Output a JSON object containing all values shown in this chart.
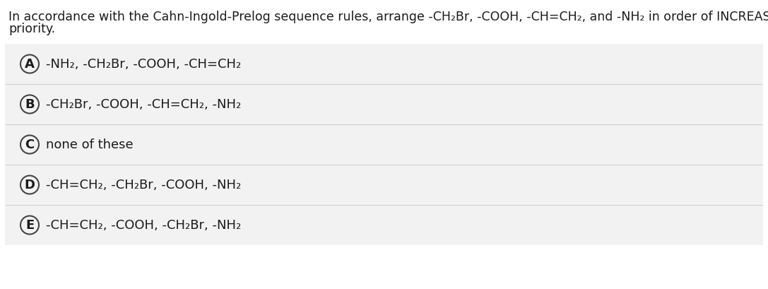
{
  "background_color": "#ffffff",
  "options_bg_color": "#f2f2f2",
  "separator_color": "#d0d0d0",
  "text_color": "#1a1a1a",
  "circle_edge_color": "#444444",
  "question_line1": "In accordance with the Cahn-Ingold-Prelog sequence rules, arrange -CH₂Br, -COOH, -CH=CH₂, and -NH₂ in order of INCREASING",
  "question_line2": "priority.",
  "option_labels": [
    "A",
    "B",
    "C",
    "D",
    "E"
  ],
  "option_texts": [
    "-NH₂, -CH₂Br, -COOH, -CH=CH₂",
    "-CH₂Br, -COOH, -CH=CH₂, -NH₂",
    "none of these",
    "-CH=CH₂, -CH₂Br, -COOH, -NH₂",
    "-CH=CH₂, -COOH, -CH₂Br, -NH₂"
  ],
  "question_fontsize": 12.5,
  "option_fontsize": 13,
  "label_fontsize": 13
}
